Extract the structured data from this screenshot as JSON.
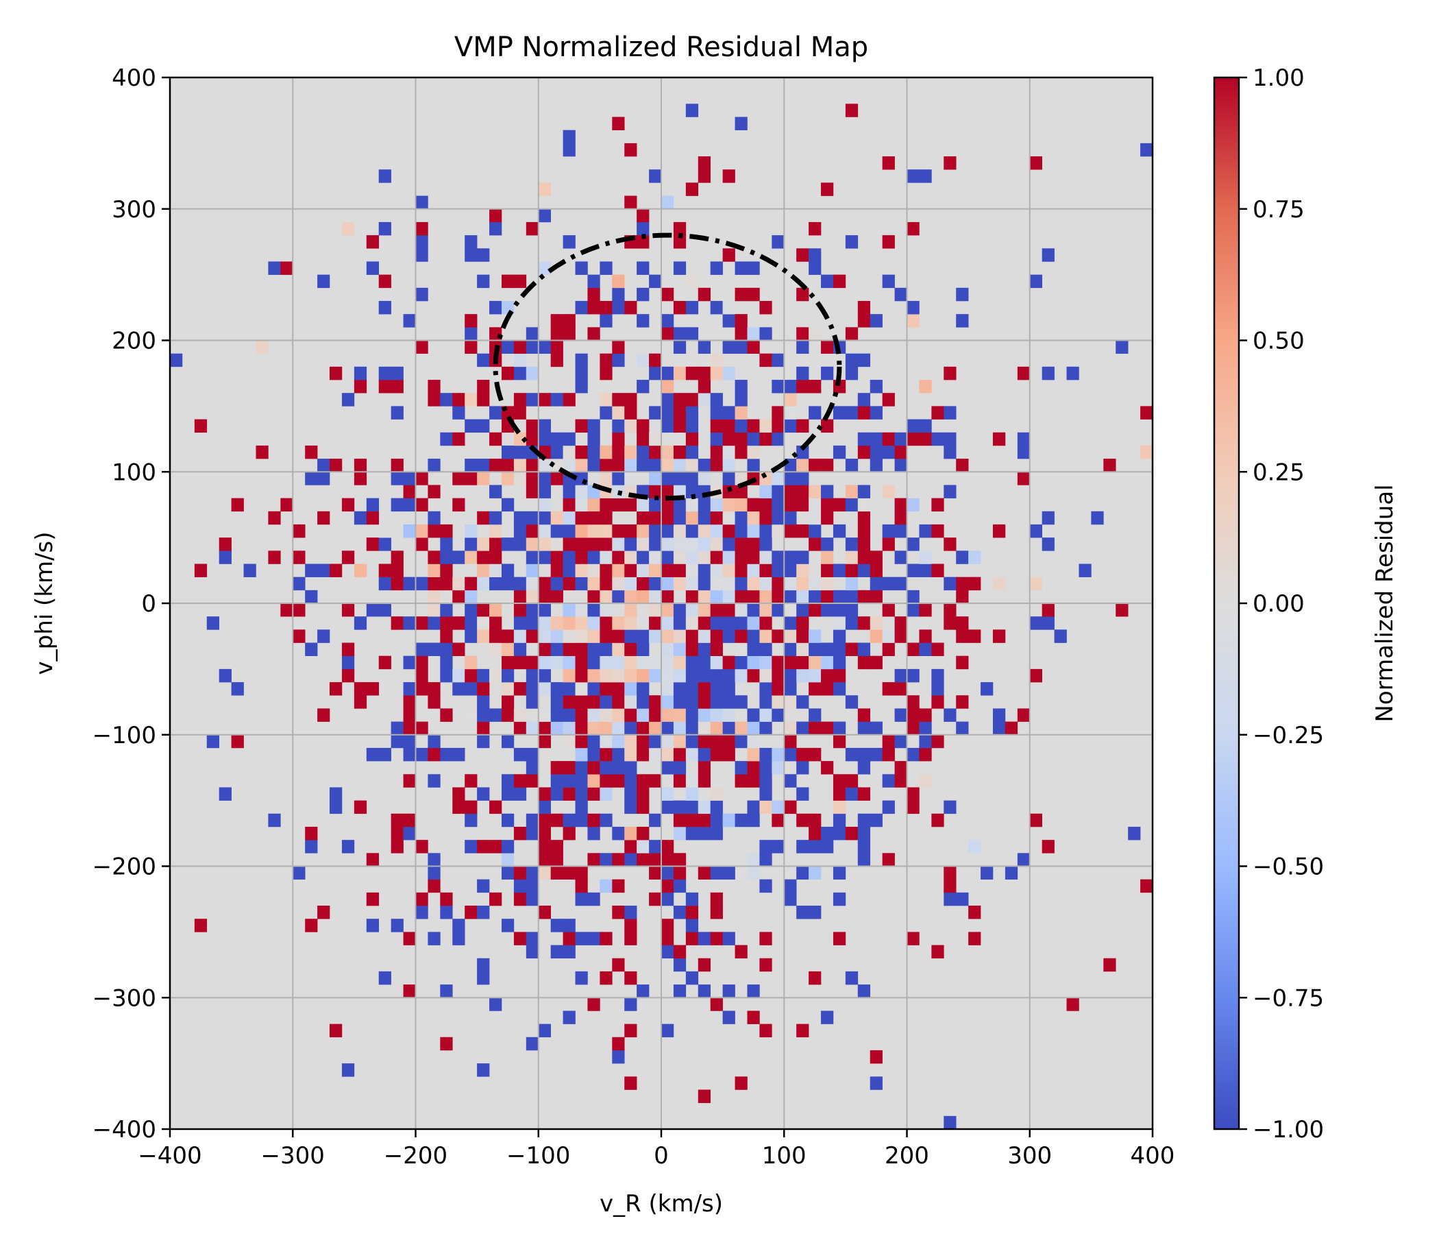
{
  "chart_data": {
    "type": "heatmap",
    "title": "VMP Normalized Residual Map",
    "xlabel": "v_R (km/s)",
    "ylabel": "v_phi (km/s)",
    "xlim": [
      -400,
      400
    ],
    "ylim": [
      -400,
      400
    ],
    "bin_width": 10,
    "x_ticks": [
      "−400",
      "−300",
      "−200",
      "−100",
      "0",
      "100",
      "200",
      "300",
      "400"
    ],
    "y_ticks": [
      "400",
      "300",
      "200",
      "100",
      "0",
      "−100",
      "−200",
      "−300",
      "−400"
    ],
    "grid": true,
    "background_color": "#dcdcdc",
    "colormap": "coolwarm",
    "colormap_stops": [
      "#3b4cc0",
      "#6788ee",
      "#9abbff",
      "#c9d7f0",
      "#dddddd",
      "#f2cbb7",
      "#f7a889",
      "#e26952",
      "#b40426"
    ],
    "colorbar": {
      "label": "Normalized Residual",
      "range": [
        -1,
        1
      ],
      "ticks": [
        "1.00",
        "0.75",
        "0.50",
        "0.25",
        "0.00",
        "−0.25",
        "−0.50",
        "−0.75",
        "−1.00"
      ]
    },
    "annotation": {
      "shape": "dashed ellipse",
      "center": [
        5,
        180
      ],
      "semi_axes": [
        140,
        100
      ],
      "color": "#000000"
    },
    "distribution": {
      "center": [
        0,
        0
      ],
      "sigma": [
        130,
        140
      ],
      "core_residual": "near 0 (light blue/light orange) in central core",
      "outer_residual": "saturated ±1.00 (dark red/blue) in outer sparse bins",
      "max_extent_km_s": 400
    }
  }
}
